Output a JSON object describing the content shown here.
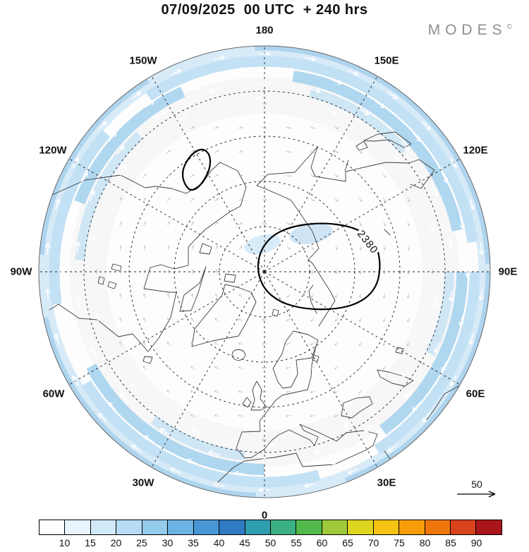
{
  "header": {
    "title": "07/09/2025  00 UTC  + 240 hrs",
    "brand": "MODES",
    "brand_mark": "©"
  },
  "map": {
    "lon_labels": [
      "180",
      "150W",
      "120W",
      "90W",
      "60W",
      "30W",
      "0",
      "30E",
      "60E",
      "90E",
      "120E",
      "150E"
    ],
    "contour_label": "2380",
    "reference_arrow": {
      "label": "50"
    }
  },
  "colorbar": {
    "tick_labels": [
      "10",
      "15",
      "20",
      "25",
      "30",
      "35",
      "40",
      "45",
      "50",
      "55",
      "60",
      "65",
      "70",
      "75",
      "80",
      "85",
      "90"
    ],
    "colors": [
      "#ffffff",
      "#e8f4fc",
      "#d2eaf8",
      "#b5dcf4",
      "#93cbed",
      "#6bb3e3",
      "#4897d4",
      "#2f7ac2",
      "#2f9eb0",
      "#3bb083",
      "#54b94b",
      "#9ec93a",
      "#ddd520",
      "#f6c213",
      "#f79d0a",
      "#ef760b",
      "#d8431c",
      "#a8151a"
    ]
  }
}
